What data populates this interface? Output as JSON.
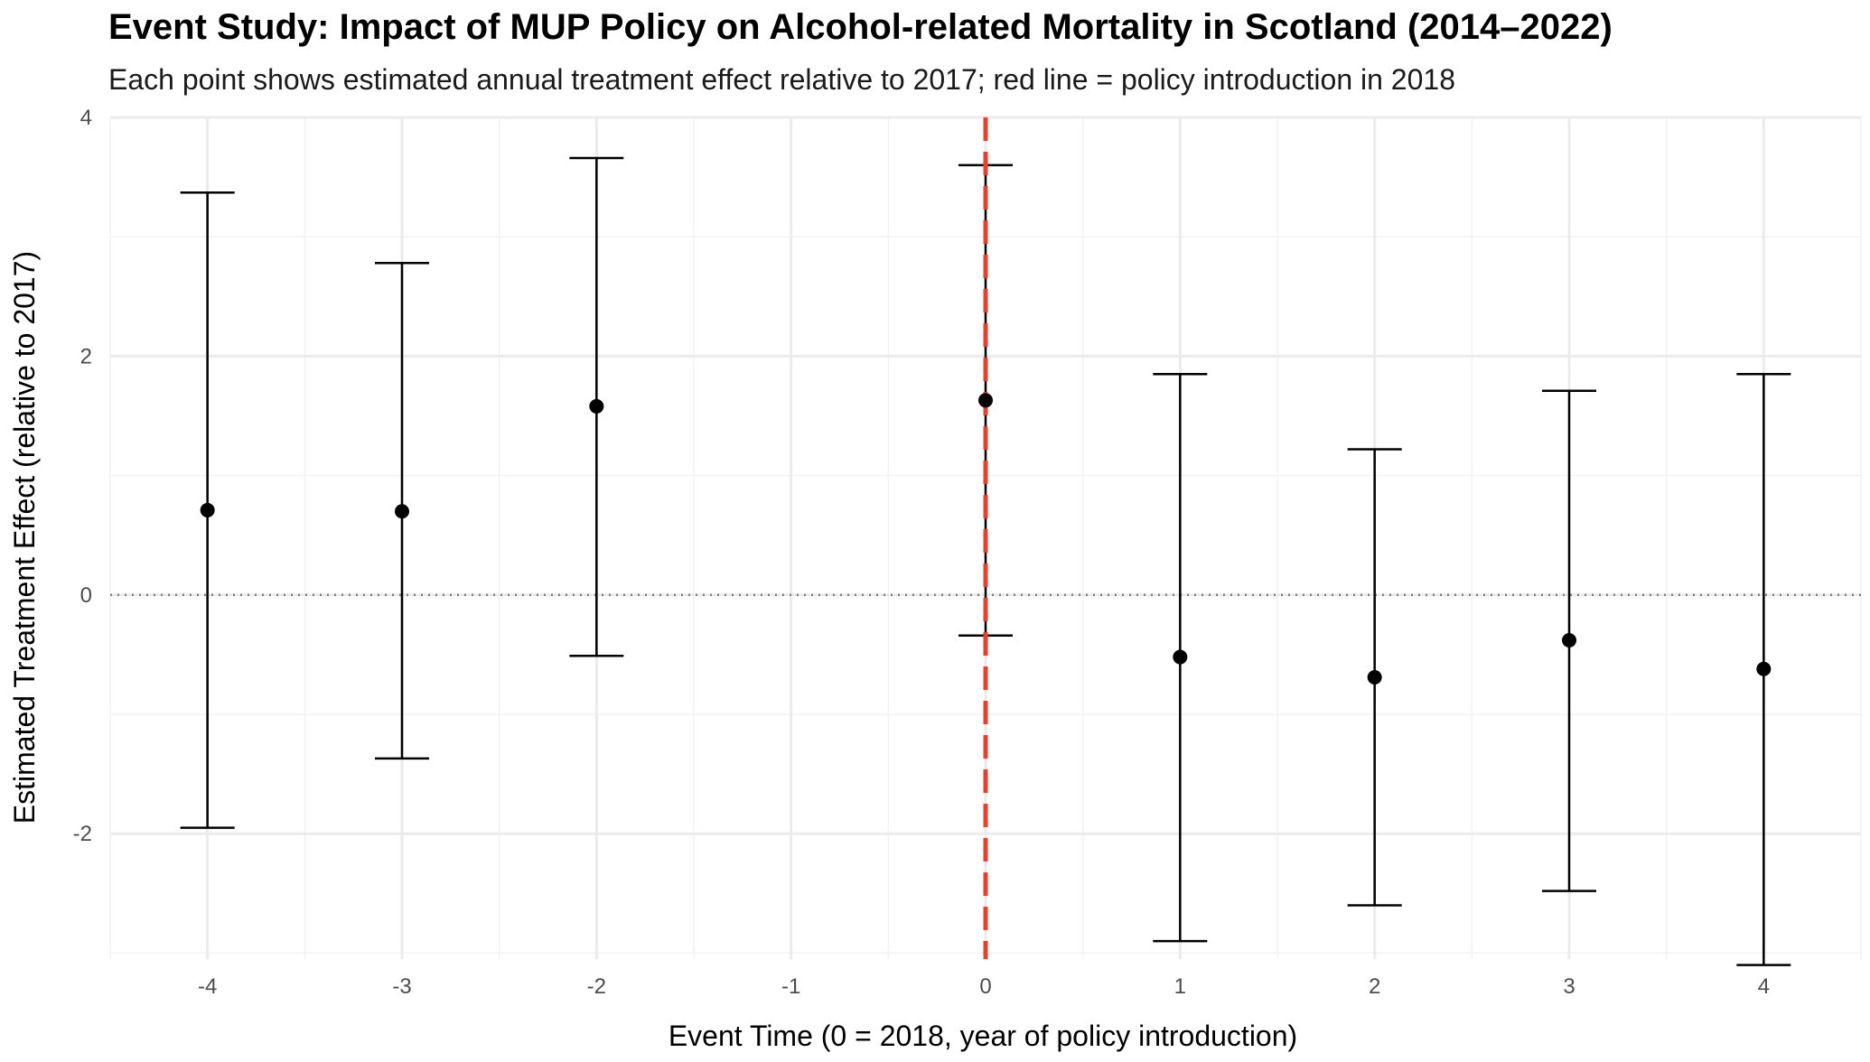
{
  "chart_data": {
    "type": "scatter",
    "subtype": "event-study-errorbars",
    "title": "Event Study: Impact of MUP Policy on Alcohol-related Mortality in Scotland (2014–2022)",
    "subtitle": "Each point shows estimated annual treatment effect relative to 2017; red line = policy introduction in 2018",
    "xlabel": "Event Time (0 = 2018, year of policy introduction)",
    "ylabel": "Estimated Treatment Effect (relative to 2017)",
    "xlim": [
      -4.5,
      4.5
    ],
    "ylim": [
      -3.05,
      4.0
    ],
    "x_ticks": [
      -4,
      -3,
      -2,
      -1,
      0,
      1,
      2,
      3,
      4
    ],
    "x_tick_labels": [
      "-4",
      "-3",
      "-2",
      "-1",
      "0",
      "1",
      "2",
      "3",
      "4"
    ],
    "y_ticks": [
      -2,
      0,
      2,
      4
    ],
    "y_tick_labels": [
      "-2",
      "0",
      "2",
      "4"
    ],
    "y_minor_ticks": [
      -3,
      -1,
      1,
      3
    ],
    "grid": true,
    "points": [
      {
        "x": -4,
        "estimate": 0.71,
        "lower": -1.95,
        "upper": 3.37
      },
      {
        "x": -3,
        "estimate": 0.7,
        "lower": -1.37,
        "upper": 2.78
      },
      {
        "x": -2,
        "estimate": 1.58,
        "lower": -0.51,
        "upper": 3.66
      },
      {
        "x": 0,
        "estimate": 1.63,
        "lower": -0.34,
        "upper": 3.6
      },
      {
        "x": 1,
        "estimate": -0.52,
        "lower": -2.9,
        "upper": 1.85
      },
      {
        "x": 2,
        "estimate": -0.69,
        "lower": -2.6,
        "upper": 1.22
      },
      {
        "x": 3,
        "estimate": -0.38,
        "lower": -2.48,
        "upper": 1.71
      },
      {
        "x": 4,
        "estimate": -0.62,
        "lower": -3.1,
        "upper": 1.85
      }
    ],
    "reference_lines": [
      {
        "orientation": "horizontal",
        "value": 0,
        "style": "dotted",
        "color": "#7f7f7f"
      },
      {
        "orientation": "vertical",
        "value": 0,
        "style": "dashed",
        "color": "#e8402d"
      }
    ],
    "colors": {
      "point": "#000000",
      "errorbar": "#000000",
      "grid_major": "#ebebeb",
      "grid_minor": "#f2f2f2",
      "policy_line": "#e8402d",
      "zero_line": "#7f7f7f"
    }
  }
}
